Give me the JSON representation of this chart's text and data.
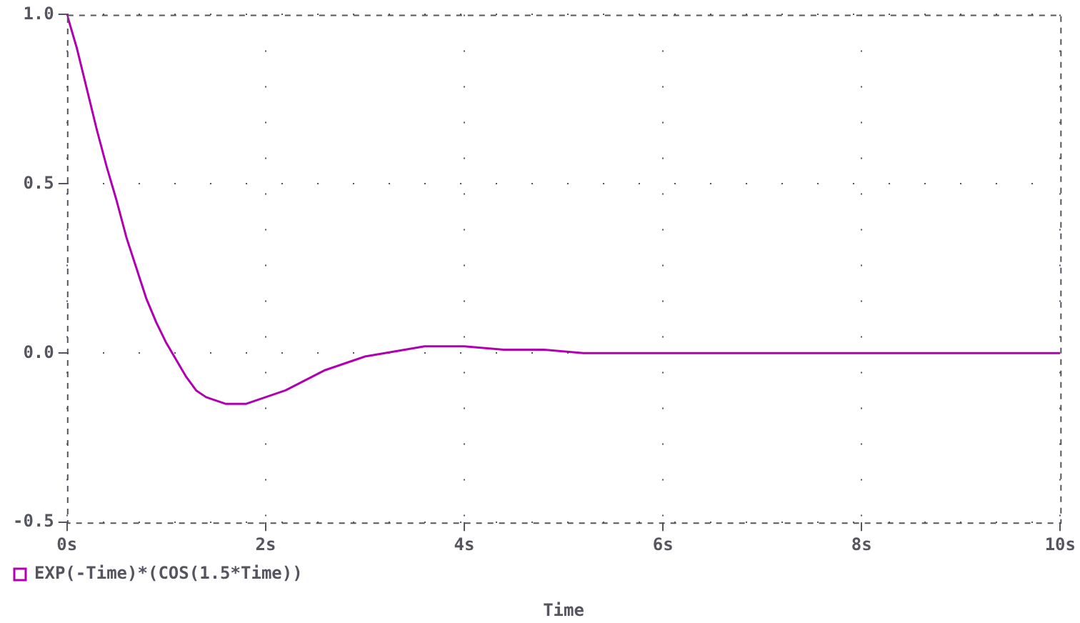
{
  "chart_data": {
    "type": "line",
    "xlabel": "Time",
    "x": [
      0,
      0.1,
      0.2,
      0.3,
      0.4,
      0.5,
      0.6,
      0.7,
      0.8,
      0.9,
      1.0,
      1.1,
      1.2,
      1.3,
      1.4,
      1.5,
      1.6,
      1.7,
      1.8,
      1.9,
      2.0,
      2.2,
      2.4,
      2.6,
      2.8,
      3.0,
      3.2,
      3.4,
      3.6,
      3.8,
      4.0,
      4.4,
      4.8,
      5.2,
      5.6,
      6.0,
      7,
      8,
      9,
      10
    ],
    "series": [
      {
        "name": "EXP(-Time)*(COS(1.5*Time))",
        "color": "#b000b0",
        "values": [
          1.0,
          0.9,
          0.78,
          0.66,
          0.55,
          0.45,
          0.34,
          0.25,
          0.16,
          0.09,
          0.03,
          -0.02,
          -0.07,
          -0.11,
          -0.13,
          -0.14,
          -0.15,
          -0.15,
          -0.15,
          -0.14,
          -0.13,
          -0.11,
          -0.08,
          -0.05,
          -0.03,
          -0.01,
          0.0,
          0.01,
          0.02,
          0.02,
          0.02,
          0.01,
          0.01,
          0.0,
          0.0,
          0.0,
          0,
          0,
          0,
          0
        ]
      }
    ],
    "xlim": [
      0,
      10
    ],
    "xticks": [
      {
        "value": 0,
        "label": "0s"
      },
      {
        "value": 2,
        "label": "2s"
      },
      {
        "value": 4,
        "label": "4s"
      },
      {
        "value": 6,
        "label": "6s"
      },
      {
        "value": 8,
        "label": "8s"
      },
      {
        "value": 10,
        "label": "10s"
      }
    ],
    "ylim": [
      -0.5,
      1.0
    ],
    "yticks": [
      -0.5,
      {
        "value": 0,
        "label": "0.0"
      },
      {
        "value": 0.5,
        "label": "0.5"
      },
      {
        "value": 1,
        "label": "1.0"
      }
    ],
    "grid": true,
    "legend": "bottom left",
    "marker": "none",
    "line_style": "solid"
  }
}
